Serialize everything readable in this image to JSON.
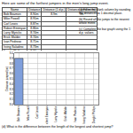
{
  "header": {
    "title": "Here are some of the furthest jumpers in the men's long jump event."
  },
  "table": {
    "columns": [
      "Name",
      "Distance",
      "Distance (1 d.p.)",
      "Distance (nearest m)"
    ],
    "rows": [
      [
        "Bob Beamon",
        "8.90m",
        "8.9m",
        "9m"
      ],
      [
        "Mike Powell",
        "8.95m",
        "",
        ""
      ],
      [
        "Carl Lewis",
        "8.87m",
        "",
        ""
      ],
      [
        "Robert Emmiyan",
        "8.86m",
        "",
        ""
      ],
      [
        "Larry Myricks",
        "8.74m",
        "",
        ""
      ],
      [
        "Erick Walder",
        "8.74m",
        "",
        ""
      ],
      [
        "Ivan Pedroso",
        "8.71m",
        "",
        ""
      ],
      [
        "Irving Saladino",
        "8.73m",
        "",
        ""
      ],
      [
        "Dwight Phillips",
        "8.74m",
        "",
        ""
      ]
    ]
  },
  "questions": [
    "(a) Fill in the blank column by rounding the distances to 1 decimal place.",
    "(b) Round all the jumps to the nearest whole metre.",
    "(c) Complete the bar graph using the 1 d.p. values."
  ],
  "chart_data": {
    "type": "bar",
    "categories": [
      "Bob Beamon",
      "Mike Powell",
      "Carl Lewis",
      "Robert Emmiyan",
      "Larry Myricks",
      "Erick Walder",
      "Ivan Pedroso",
      "Irving Saladino",
      "Dwight Phillips"
    ],
    "values": [
      8.9,
      null,
      null,
      null,
      null,
      null,
      null,
      null,
      null
    ],
    "color": "#7f9fdc",
    "ylabel": "Distance jumped (m)",
    "ylim": [
      8,
      9
    ],
    "yticks": [
      {
        "value": 8,
        "label": "8.0"
      },
      8.1,
      8.2,
      8.3,
      8.4,
      8.5,
      8.6,
      8.7,
      8.8,
      8.9,
      {
        "value": 9,
        "label": "9.0"
      }
    ],
    "grid": true
  },
  "footer": {
    "question": "(d) What is the difference between the length of the longest and shortest jump?"
  }
}
